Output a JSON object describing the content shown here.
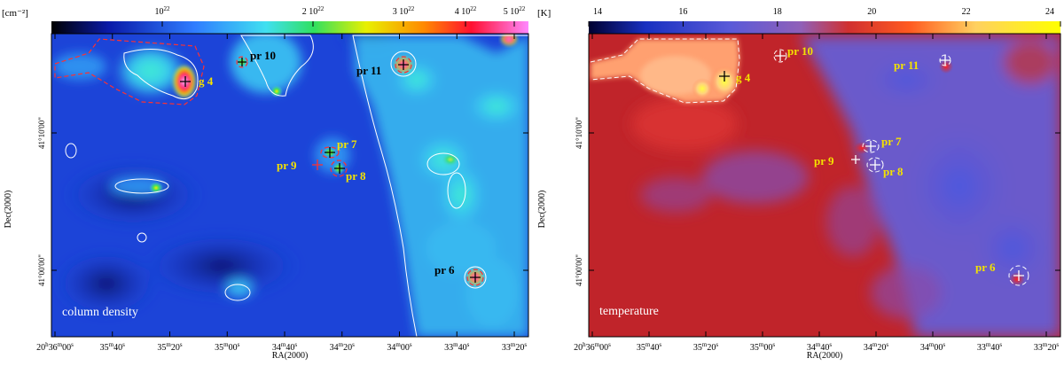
{
  "left": {
    "unit_label": "[cm⁻²]",
    "colorbar_ticks": [
      {
        "base": "10",
        "exp": "22"
      },
      {
        "base": "2 10",
        "exp": "22"
      },
      {
        "base": "3 10",
        "exp": "22"
      },
      {
        "base": "4 10",
        "exp": "22"
      },
      {
        "base": "5 10",
        "exp": "22"
      }
    ],
    "map_label": "column density",
    "ylabel": "Dec(2000)",
    "xlabel": "RA(2000)",
    "y_ticks": [
      "41°10'00\"",
      "41°00'00\""
    ],
    "x_ticks": [
      {
        "h": "20",
        "m": "36",
        "s": "00"
      },
      {
        "m": "35",
        "s": "40"
      },
      {
        "m": "35",
        "s": "20"
      },
      {
        "m": "35",
        "s": "00"
      },
      {
        "m": "34",
        "s": "40"
      },
      {
        "m": "34",
        "s": "20"
      },
      {
        "m": "34",
        "s": "00"
      },
      {
        "m": "33",
        "s": "40"
      },
      {
        "m": "33",
        "s": "20"
      }
    ],
    "sources": [
      "g 4",
      "pr 10",
      "pr 11",
      "pr 7",
      "pr 9",
      "pr 8",
      "pr 6"
    ]
  },
  "right": {
    "unit_label": "[K]",
    "colorbar_ticks": [
      "14",
      "16",
      "18",
      "20",
      "22",
      "24"
    ],
    "map_label": "temperature",
    "ylabel": "Dec(2000)",
    "xlabel": "RA(2000)",
    "y_ticks": [
      "41°10'00\"",
      "41°00'00\""
    ],
    "x_ticks": [
      {
        "h": "20",
        "m": "36",
        "s": "00"
      },
      {
        "m": "35",
        "s": "40"
      },
      {
        "m": "35",
        "s": "20"
      },
      {
        "m": "35",
        "s": "00"
      },
      {
        "m": "34",
        "s": "40"
      },
      {
        "m": "34",
        "s": "20"
      },
      {
        "m": "34",
        "s": "00"
      },
      {
        "m": "33",
        "s": "40"
      },
      {
        "m": "33",
        "s": "20"
      }
    ],
    "sources": [
      "g 4",
      "pr 10",
      "pr 11",
      "pr 7",
      "pr 9",
      "pr 8",
      "pr 6"
    ]
  },
  "colors": {
    "label_yellow": "#f4e200",
    "dens_bg": "#1c44d8",
    "temp_bg": "#c0242a"
  }
}
